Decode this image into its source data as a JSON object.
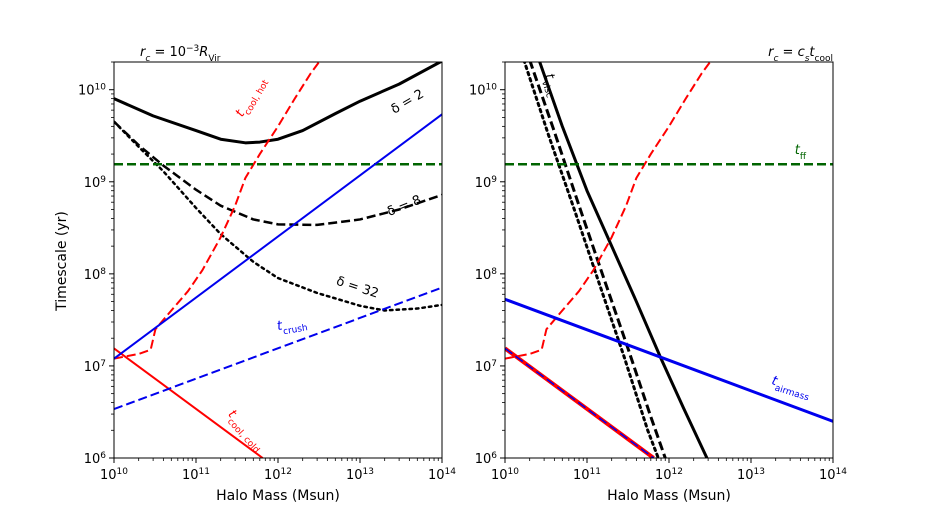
{
  "figure": {
    "ylabel": "Timescale (yr)"
  },
  "chart_data": [
    {
      "type": "line",
      "title": "r_c = 10^{-3} R_Vir",
      "title_parts": {
        "main": "r",
        "sub": "c",
        "eq": " = 10",
        "sup": "−3",
        "r": "R",
        "rsub": "Vir"
      },
      "xlabel": "Halo Mass (Msun)",
      "ylabel": "Timescale (yr)",
      "xscale": "log",
      "yscale": "log",
      "xlim": [
        10000000000.0,
        100000000000000.0
      ],
      "ylim": [
        1000000.0,
        20000000000.0
      ],
      "x_ticks": [
        {
          "base": "10",
          "exp": "10"
        },
        {
          "base": "10",
          "exp": "11"
        },
        {
          "base": "10",
          "exp": "12"
        },
        {
          "base": "10",
          "exp": "13"
        },
        {
          "base": "10",
          "exp": "14"
        }
      ],
      "y_ticks": [
        {
          "base": "10",
          "exp": "6"
        },
        {
          "base": "10",
          "exp": "7"
        },
        {
          "base": "10",
          "exp": "8"
        },
        {
          "base": "10",
          "exp": "9"
        },
        {
          "base": "10",
          "exp": "10"
        }
      ],
      "series": [
        {
          "name": "δ = 2",
          "color": "#000000",
          "style": "solid",
          "width": 3,
          "x": [
            10000000000.0,
            30000000000.0,
            100000000000.0,
            200000000000.0,
            400000000000.0,
            600000000000.0,
            1000000000000.0,
            2000000000000.0,
            5000000000000.0,
            10000000000000.0,
            30000000000000.0,
            100000000000000.0
          ],
          "y": [
            8000000000.0,
            5200000000.0,
            3600000000.0,
            2900000000.0,
            2650000000.0,
            2700000000.0,
            2900000000.0,
            3600000000.0,
            5500000000.0,
            7500000000.0,
            11500000000.0,
            20500000000.0
          ]
        },
        {
          "name": "δ = 8",
          "color": "#000000",
          "style": "dashed",
          "width": 2.5,
          "x": [
            10000000000.0,
            20000000000.0,
            40000000000.0,
            100000000000.0,
            200000000000.0,
            500000000000.0,
            1000000000000.0,
            3000000000000.0,
            10000000000000.0,
            30000000000000.0,
            100000000000000.0
          ],
          "y": [
            4500000000.0,
            2500000000.0,
            1500000000.0,
            820000000.0,
            550000000.0,
            390000000.0,
            345000000.0,
            340000000.0,
            390000000.0,
            500000000.0,
            720000000.0
          ]
        },
        {
          "name": "δ = 32",
          "color": "#000000",
          "style": "dotted",
          "width": 2.5,
          "x": [
            10000000000.0,
            20000000000.0,
            40000000000.0,
            100000000000.0,
            200000000000.0,
            500000000000.0,
            1000000000000.0,
            3000000000000.0,
            10000000000000.0,
            20000000000000.0,
            50000000000000.0,
            100000000000000.0
          ],
          "y": [
            4500000000.0,
            2400000000.0,
            1300000000.0,
            520000000.0,
            270000000.0,
            135000000.0,
            90000000.0,
            62000000.0,
            45000000.0,
            40000000.0,
            42000000.0,
            46000000.0
          ]
        },
        {
          "name": "t_cool,hot",
          "color": "#ff0000",
          "style": "dashed",
          "width": 2,
          "x": [
            10000000000.0,
            20000000000.0,
            28000000000.0,
            32000000000.0,
            50000000000.0,
            80000000000.0,
            120000000000.0,
            200000000000.0,
            300000000000.0,
            400000000000.0,
            600000000000.0,
            1000000000000.0,
            1600000000000.0,
            2500000000000.0,
            3300000000000.0
          ],
          "y": [
            12000000.0,
            13500000.0,
            15000000.0,
            25000000.0,
            40000000.0,
            65000000.0,
            110000000.0,
            250000000.0,
            550000000.0,
            1100000000.0,
            2000000000.0,
            4000000000.0,
            8000000000.0,
            15000000000.0,
            21000000000.0
          ]
        },
        {
          "name": "t_cool,cold",
          "color": "#ff0000",
          "style": "solid",
          "width": 2,
          "x": [
            10000000000.0,
            650000000000.0
          ],
          "y": [
            15500000.0,
            1000000.0
          ]
        },
        {
          "name": "t_ff",
          "color": "#006400",
          "style": "dashed",
          "width": 2.5,
          "x": [
            10000000000.0,
            100000000000000.0
          ],
          "y": [
            1550000000.0,
            1550000000.0
          ]
        },
        {
          "name": "blue solid",
          "color": "#0000ee",
          "style": "solid",
          "width": 2,
          "x": [
            10000000000.0,
            100000000000000.0
          ],
          "y": [
            12000000.0,
            5400000000.0
          ]
        },
        {
          "name": "t_crush",
          "color": "#0000ee",
          "style": "dashed",
          "width": 2,
          "x": [
            10000000000.0,
            100000000000000.0
          ],
          "y": [
            3400000.0,
            71000000.0
          ]
        }
      ],
      "annotations": [
        {
          "id": "d2",
          "text": "δ = 2",
          "x": 40000000000000.0,
          "y": 6800000000.0,
          "rot": -30
        },
        {
          "id": "d8",
          "text": "δ = 8",
          "x": 36000000000000.0,
          "y": 500000000.0,
          "rot": -22
        },
        {
          "id": "d32",
          "text": "δ = 32",
          "x": 9000000000000.0,
          "y": 65000000.0,
          "rot": 18
        },
        {
          "id": "tch",
          "text": "t",
          "sub": "cool, hot",
          "x": 500000000000.0,
          "y": 8000000000.0,
          "rot": -60,
          "color": "#ff0000"
        },
        {
          "id": "tcc",
          "text": "t",
          "sub": "cool, cold",
          "x": 380000000000.0,
          "y": 1900000.0,
          "rot": 48,
          "color": "#ff0000"
        },
        {
          "id": "tcr",
          "text": "t",
          "sub": "crush",
          "x": 1500000000000.0,
          "y": 26000000.0,
          "rot": -10,
          "color": "#0000ee"
        }
      ]
    },
    {
      "type": "line",
      "title": "r_c = c_s t_cool",
      "title_parts": {
        "main": "r",
        "sub": "c",
        "eq": " = ",
        "cs": "c",
        "cssub": "s",
        "t": "t",
        "tsub": "cool"
      },
      "xlabel": "Halo Mass (Msun)",
      "ylabel": "",
      "xscale": "log",
      "yscale": "log",
      "xlim": [
        10000000000.0,
        100000000000000.0
      ],
      "ylim": [
        1000000.0,
        20000000000.0
      ],
      "x_ticks": [
        {
          "base": "10",
          "exp": "10"
        },
        {
          "base": "10",
          "exp": "11"
        },
        {
          "base": "10",
          "exp": "12"
        },
        {
          "base": "10",
          "exp": "13"
        },
        {
          "base": "10",
          "exp": "14"
        }
      ],
      "y_ticks": [
        {
          "base": "10",
          "exp": "6"
        },
        {
          "base": "10",
          "exp": "7"
        },
        {
          "base": "10",
          "exp": "8"
        },
        {
          "base": "10",
          "exp": "9"
        },
        {
          "base": "10",
          "exp": "10"
        }
      ],
      "series": [
        {
          "name": "t_visc solid",
          "color": "#000000",
          "style": "solid",
          "width": 3,
          "x": [
            26000000000.0,
            50000000000.0,
            100000000000.0,
            200000000000.0,
            400000000000.0,
            800000000000.0,
            1500000000000.0,
            2900000000000.0
          ],
          "y": [
            21000000000.0,
            4000000000.0,
            800000000.0,
            200000000.0,
            50000000.0,
            12000000.0,
            3500000.0,
            1000000.0
          ]
        },
        {
          "name": "t_visc dashed",
          "color": "#000000",
          "style": "dashed",
          "width": 3,
          "x": [
            20000000000.0,
            40000000000.0,
            80000000000.0,
            160000000000.0,
            320000000000.0,
            600000000000.0,
            900000000000.0
          ],
          "y": [
            21000000000.0,
            3500000000.0,
            550000000.0,
            90000000.0,
            15000000.0,
            2800000.0,
            1000000.0
          ]
        },
        {
          "name": "t_visc dotted",
          "color": "#000000",
          "style": "dotted",
          "width": 3,
          "x": [
            17000000000.0,
            34000000000.0,
            70000000000.0,
            140000000000.0,
            280000000000.0,
            550000000000.0,
            740000000000.0
          ],
          "y": [
            21000000000.0,
            3200000000.0,
            500000000.0,
            80000000.0,
            13000000.0,
            2000000.0,
            1000000.0
          ]
        },
        {
          "name": "t_cool,hot",
          "color": "#ff0000",
          "style": "dashed",
          "width": 2,
          "x": [
            10000000000.0,
            20000000000.0,
            28000000000.0,
            32000000000.0,
            50000000000.0,
            80000000000.0,
            120000000000.0,
            200000000000.0,
            300000000000.0,
            400000000000.0,
            600000000000.0,
            1000000000000.0,
            1600000000000.0,
            2500000000000.0,
            3300000000000.0
          ],
          "y": [
            12000000.0,
            13500000.0,
            15000000.0,
            25000000.0,
            40000000.0,
            65000000.0,
            110000000.0,
            250000000.0,
            550000000.0,
            1100000000.0,
            2000000000.0,
            4000000000.0,
            8000000000.0,
            15000000000.0,
            21000000000.0
          ]
        },
        {
          "name": "t_cool,cold",
          "color": "#ff0000",
          "style": "solid",
          "width": 4,
          "x": [
            10000000000.0,
            650000000000.0
          ],
          "y": [
            15500000.0,
            1000000.0
          ]
        },
        {
          "name": "blue overlay",
          "color": "#0000ee",
          "style": "dashed",
          "width": 1.5,
          "x": [
            10000000000.0,
            650000000000.0
          ],
          "y": [
            15500000.0,
            1000000.0
          ]
        },
        {
          "name": "t_ff",
          "color": "#006400",
          "style": "dashed",
          "width": 2.5,
          "x": [
            10000000000.0,
            100000000000000.0
          ],
          "y": [
            1550000000.0,
            1550000000.0
          ]
        },
        {
          "name": "t_airmass",
          "color": "#0000ee",
          "style": "solid",
          "width": 3,
          "x": [
            10000000000.0,
            100000000000000.0
          ],
          "y": [
            53000000.0,
            2500000.0
          ]
        }
      ],
      "annotations": [
        {
          "id": "tff",
          "text": "t",
          "sub": "ff",
          "x": 40000000000000.0,
          "y": 2000000000.0,
          "rot": 0,
          "color": "#006400"
        },
        {
          "id": "tvi",
          "text": "t",
          "sub": "visc",
          "x": 34000000000.0,
          "y": 11000000000.0,
          "rot": 72,
          "color": "#000000"
        },
        {
          "id": "tai",
          "text": "t",
          "sub": "airmass",
          "x": 30000000000000.0,
          "y": 5500000.0,
          "rot": 17,
          "color": "#0000ee"
        }
      ]
    }
  ]
}
